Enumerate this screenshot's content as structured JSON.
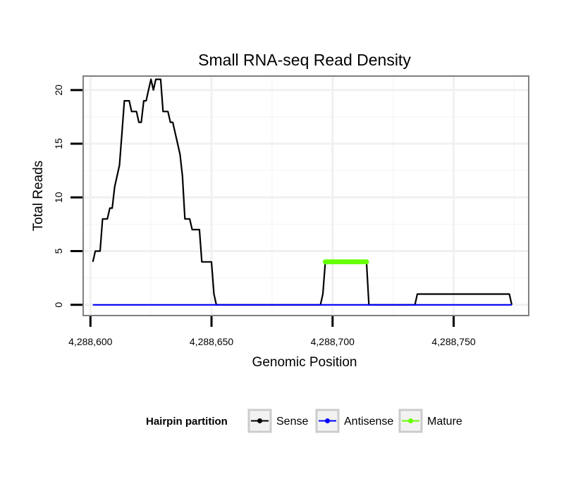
{
  "chart_data": {
    "type": "line",
    "title": "Small RNA-seq Read Density",
    "xlabel": "Genomic Position",
    "ylabel": "Total Reads",
    "xlim": [
      4288597,
      4288781
    ],
    "ylim": [
      -1,
      21.3
    ],
    "x_ticks": [
      4288600,
      4288650,
      4288700,
      4288750
    ],
    "x_tick_labels": [
      "4,288,600",
      "4,288,650",
      "4,288,700",
      "4,288,750"
    ],
    "y_ticks": [
      0,
      5,
      10,
      15,
      20
    ],
    "y_tick_labels": [
      "0",
      "5",
      "10",
      "15",
      "20"
    ],
    "grid": true,
    "legend": {
      "title": "Hairpin partition",
      "position": "bottom",
      "entries": [
        "Sense",
        "Antisense",
        "Mature"
      ]
    },
    "series": [
      {
        "name": "Sense",
        "color": "#000000",
        "x": [
          4288601,
          4288602,
          4288603,
          4288604,
          4288605,
          4288606,
          4288607,
          4288608,
          4288609,
          4288610,
          4288611,
          4288612,
          4288613,
          4288614,
          4288615,
          4288616,
          4288617,
          4288618,
          4288619,
          4288620,
          4288621,
          4288622,
          4288623,
          4288624,
          4288625,
          4288626,
          4288627,
          4288628,
          4288629,
          4288630,
          4288631,
          4288632,
          4288633,
          4288634,
          4288635,
          4288636,
          4288637,
          4288638,
          4288639,
          4288640,
          4288641,
          4288642,
          4288643,
          4288644,
          4288645,
          4288646,
          4288647,
          4288648,
          4288649,
          4288650,
          4288651,
          4288652,
          4288653,
          4288695,
          4288696,
          4288697,
          4288714,
          4288715,
          4288734,
          4288735,
          4288773,
          4288774
        ],
        "values": [
          4,
          5,
          5,
          5,
          8,
          8,
          8,
          9,
          9,
          11,
          12,
          13,
          16,
          19,
          19,
          19,
          18,
          18,
          18,
          17,
          17,
          19,
          19,
          20,
          21,
          20,
          21,
          21,
          21,
          18,
          18,
          18,
          17,
          17,
          16,
          15,
          14,
          12,
          8,
          8,
          8,
          7,
          7,
          7,
          7,
          4,
          4,
          4,
          4,
          4,
          1,
          0,
          0,
          0,
          1,
          4,
          4,
          0,
          0,
          1,
          1,
          0
        ]
      },
      {
        "name": "Antisense",
        "color": "#0000ff",
        "x": [
          4288601,
          4288774
        ],
        "values": [
          0,
          0
        ]
      },
      {
        "name": "Mature",
        "color": "#66ff00",
        "x": [
          4288697,
          4288698,
          4288699,
          4288700,
          4288701,
          4288702,
          4288703,
          4288704,
          4288705,
          4288706,
          4288707,
          4288708,
          4288709,
          4288710,
          4288711,
          4288712,
          4288713,
          4288714
        ],
        "values": [
          4,
          4,
          4,
          4,
          4,
          4,
          4,
          4,
          4,
          4,
          4,
          4,
          4,
          4,
          4,
          4,
          4,
          4
        ]
      }
    ]
  }
}
